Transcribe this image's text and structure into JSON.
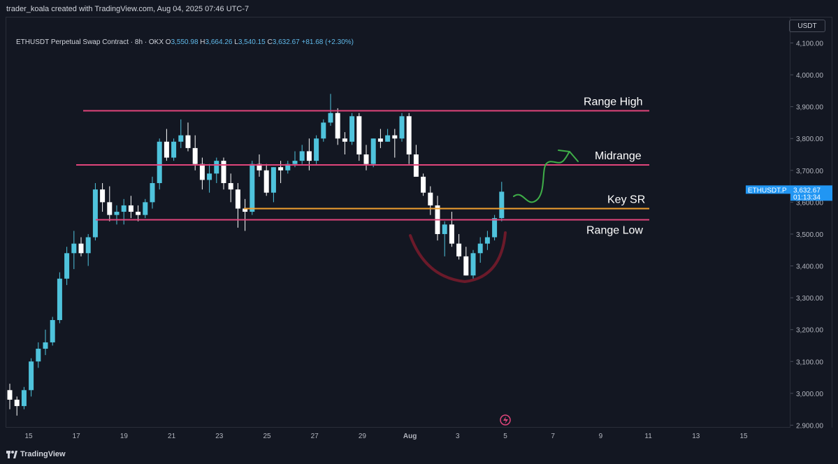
{
  "header": {
    "created_by": "trader_koala created with TradingView.com, Aug 04, 2025 07:46 UTC-7"
  },
  "legend": {
    "symbol": "ETHUSDT Perpetual Swap Contract · 8h · OKX",
    "open_label": "O",
    "open": "3,550.98",
    "high_label": "H",
    "high": "3,664.26",
    "low_label": "L",
    "low": "3,540.15",
    "close_label": "C",
    "close": "3,632.67",
    "change": "+81.68 (+2.30%)"
  },
  "axis": {
    "currency": "USDT"
  },
  "price_tag": {
    "symbol": "ETHUSDT.P",
    "price": "3,632.67",
    "countdown": "01:13:34"
  },
  "levels": {
    "range_high": "Range High",
    "midrange": "Midrange",
    "key_sr": "Key SR",
    "range_low": "Range Low"
  },
  "footer": {
    "brand": "TradingView"
  },
  "colors": {
    "up": "#4fc3dc",
    "down": "#ffffff",
    "range_lines": "#e0457b",
    "key_sr": "#f0a030",
    "arrow": "#3fae48",
    "arc": "#6b1a2a"
  },
  "chart_data": {
    "type": "candlestick",
    "ylim": [
      2890,
      4180
    ],
    "y_ticks": [
      "2,900.00",
      "3,000.00",
      "3,100.00",
      "3,200.00",
      "3,300.00",
      "3,400.00",
      "3,500.00",
      "3,600.00",
      "3,700.00",
      "3,800.00",
      "3,900.00",
      "4,000.00",
      "4,100.00"
    ],
    "x_ticks": [
      "15",
      "17",
      "19",
      "21",
      "23",
      "25",
      "27",
      "29",
      "Aug",
      "3",
      "5",
      "7",
      "9",
      "11",
      "13",
      "15"
    ],
    "levels": [
      {
        "name": "Range High",
        "value": 3887
      },
      {
        "name": "Midrange",
        "value": 3717
      },
      {
        "name": "Key SR",
        "value": 3580
      },
      {
        "name": "Range Low",
        "value": 3545
      }
    ],
    "ohlc": [
      [
        3010,
        3030,
        2950,
        2980
      ],
      [
        2980,
        2990,
        2930,
        2960
      ],
      [
        2960,
        3020,
        2950,
        3010
      ],
      [
        3010,
        3110,
        2990,
        3100
      ],
      [
        3100,
        3160,
        3080,
        3140
      ],
      [
        3140,
        3200,
        3120,
        3160
      ],
      [
        3160,
        3240,
        3150,
        3230
      ],
      [
        3230,
        3380,
        3220,
        3360
      ],
      [
        3360,
        3460,
        3340,
        3440
      ],
      [
        3440,
        3510,
        3390,
        3470
      ],
      [
        3470,
        3490,
        3430,
        3440
      ],
      [
        3440,
        3500,
        3400,
        3490
      ],
      [
        3490,
        3660,
        3480,
        3640
      ],
      [
        3640,
        3660,
        3570,
        3600
      ],
      [
        3600,
        3650,
        3540,
        3560
      ],
      [
        3560,
        3590,
        3530,
        3570
      ],
      [
        3570,
        3610,
        3530,
        3590
      ],
      [
        3590,
        3620,
        3550,
        3570
      ],
      [
        3570,
        3590,
        3540,
        3560
      ],
      [
        3560,
        3610,
        3550,
        3600
      ],
      [
        3600,
        3680,
        3580,
        3660
      ],
      [
        3660,
        3800,
        3640,
        3790
      ],
      [
        3790,
        3830,
        3730,
        3740
      ],
      [
        3740,
        3800,
        3730,
        3790
      ],
      [
        3790,
        3860,
        3770,
        3810
      ],
      [
        3810,
        3850,
        3760,
        3770
      ],
      [
        3770,
        3810,
        3700,
        3720
      ],
      [
        3720,
        3740,
        3640,
        3670
      ],
      [
        3670,
        3720,
        3630,
        3690
      ],
      [
        3690,
        3740,
        3660,
        3730
      ],
      [
        3730,
        3740,
        3640,
        3660
      ],
      [
        3660,
        3690,
        3600,
        3640
      ],
      [
        3640,
        3660,
        3520,
        3580
      ],
      [
        3580,
        3610,
        3510,
        3570
      ],
      [
        3570,
        3730,
        3560,
        3720
      ],
      [
        3720,
        3750,
        3680,
        3700
      ],
      [
        3700,
        3720,
        3620,
        3630
      ],
      [
        3630,
        3710,
        3600,
        3710
      ],
      [
        3710,
        3730,
        3660,
        3700
      ],
      [
        3700,
        3730,
        3690,
        3720
      ],
      [
        3720,
        3760,
        3710,
        3730
      ],
      [
        3730,
        3780,
        3720,
        3760
      ],
      [
        3760,
        3800,
        3700,
        3730
      ],
      [
        3730,
        3810,
        3720,
        3800
      ],
      [
        3800,
        3860,
        3790,
        3850
      ],
      [
        3850,
        3940,
        3840,
        3880
      ],
      [
        3880,
        3895,
        3780,
        3800
      ],
      [
        3800,
        3820,
        3750,
        3790
      ],
      [
        3790,
        3880,
        3780,
        3870
      ],
      [
        3870,
        3880,
        3730,
        3750
      ],
      [
        3750,
        3780,
        3700,
        3720
      ],
      [
        3720,
        3800,
        3710,
        3800
      ],
      [
        3800,
        3830,
        3770,
        3790
      ],
      [
        3790,
        3830,
        3790,
        3810
      ],
      [
        3810,
        3830,
        3740,
        3800
      ],
      [
        3800,
        3880,
        3790,
        3870
      ],
      [
        3870,
        3880,
        3720,
        3750
      ],
      [
        3750,
        3780,
        3680,
        3680
      ],
      [
        3680,
        3690,
        3620,
        3630
      ],
      [
        3630,
        3650,
        3560,
        3590
      ],
      [
        3590,
        3620,
        3480,
        3500
      ],
      [
        3500,
        3540,
        3430,
        3530
      ],
      [
        3530,
        3570,
        3460,
        3470
      ],
      [
        3470,
        3500,
        3420,
        3430
      ],
      [
        3430,
        3460,
        3370,
        3370
      ],
      [
        3370,
        3450,
        3360,
        3440
      ],
      [
        3440,
        3490,
        3410,
        3470
      ],
      [
        3470,
        3510,
        3450,
        3490
      ],
      [
        3490,
        3560,
        3480,
        3550
      ],
      [
        3550,
        3664,
        3540,
        3633
      ]
    ]
  }
}
